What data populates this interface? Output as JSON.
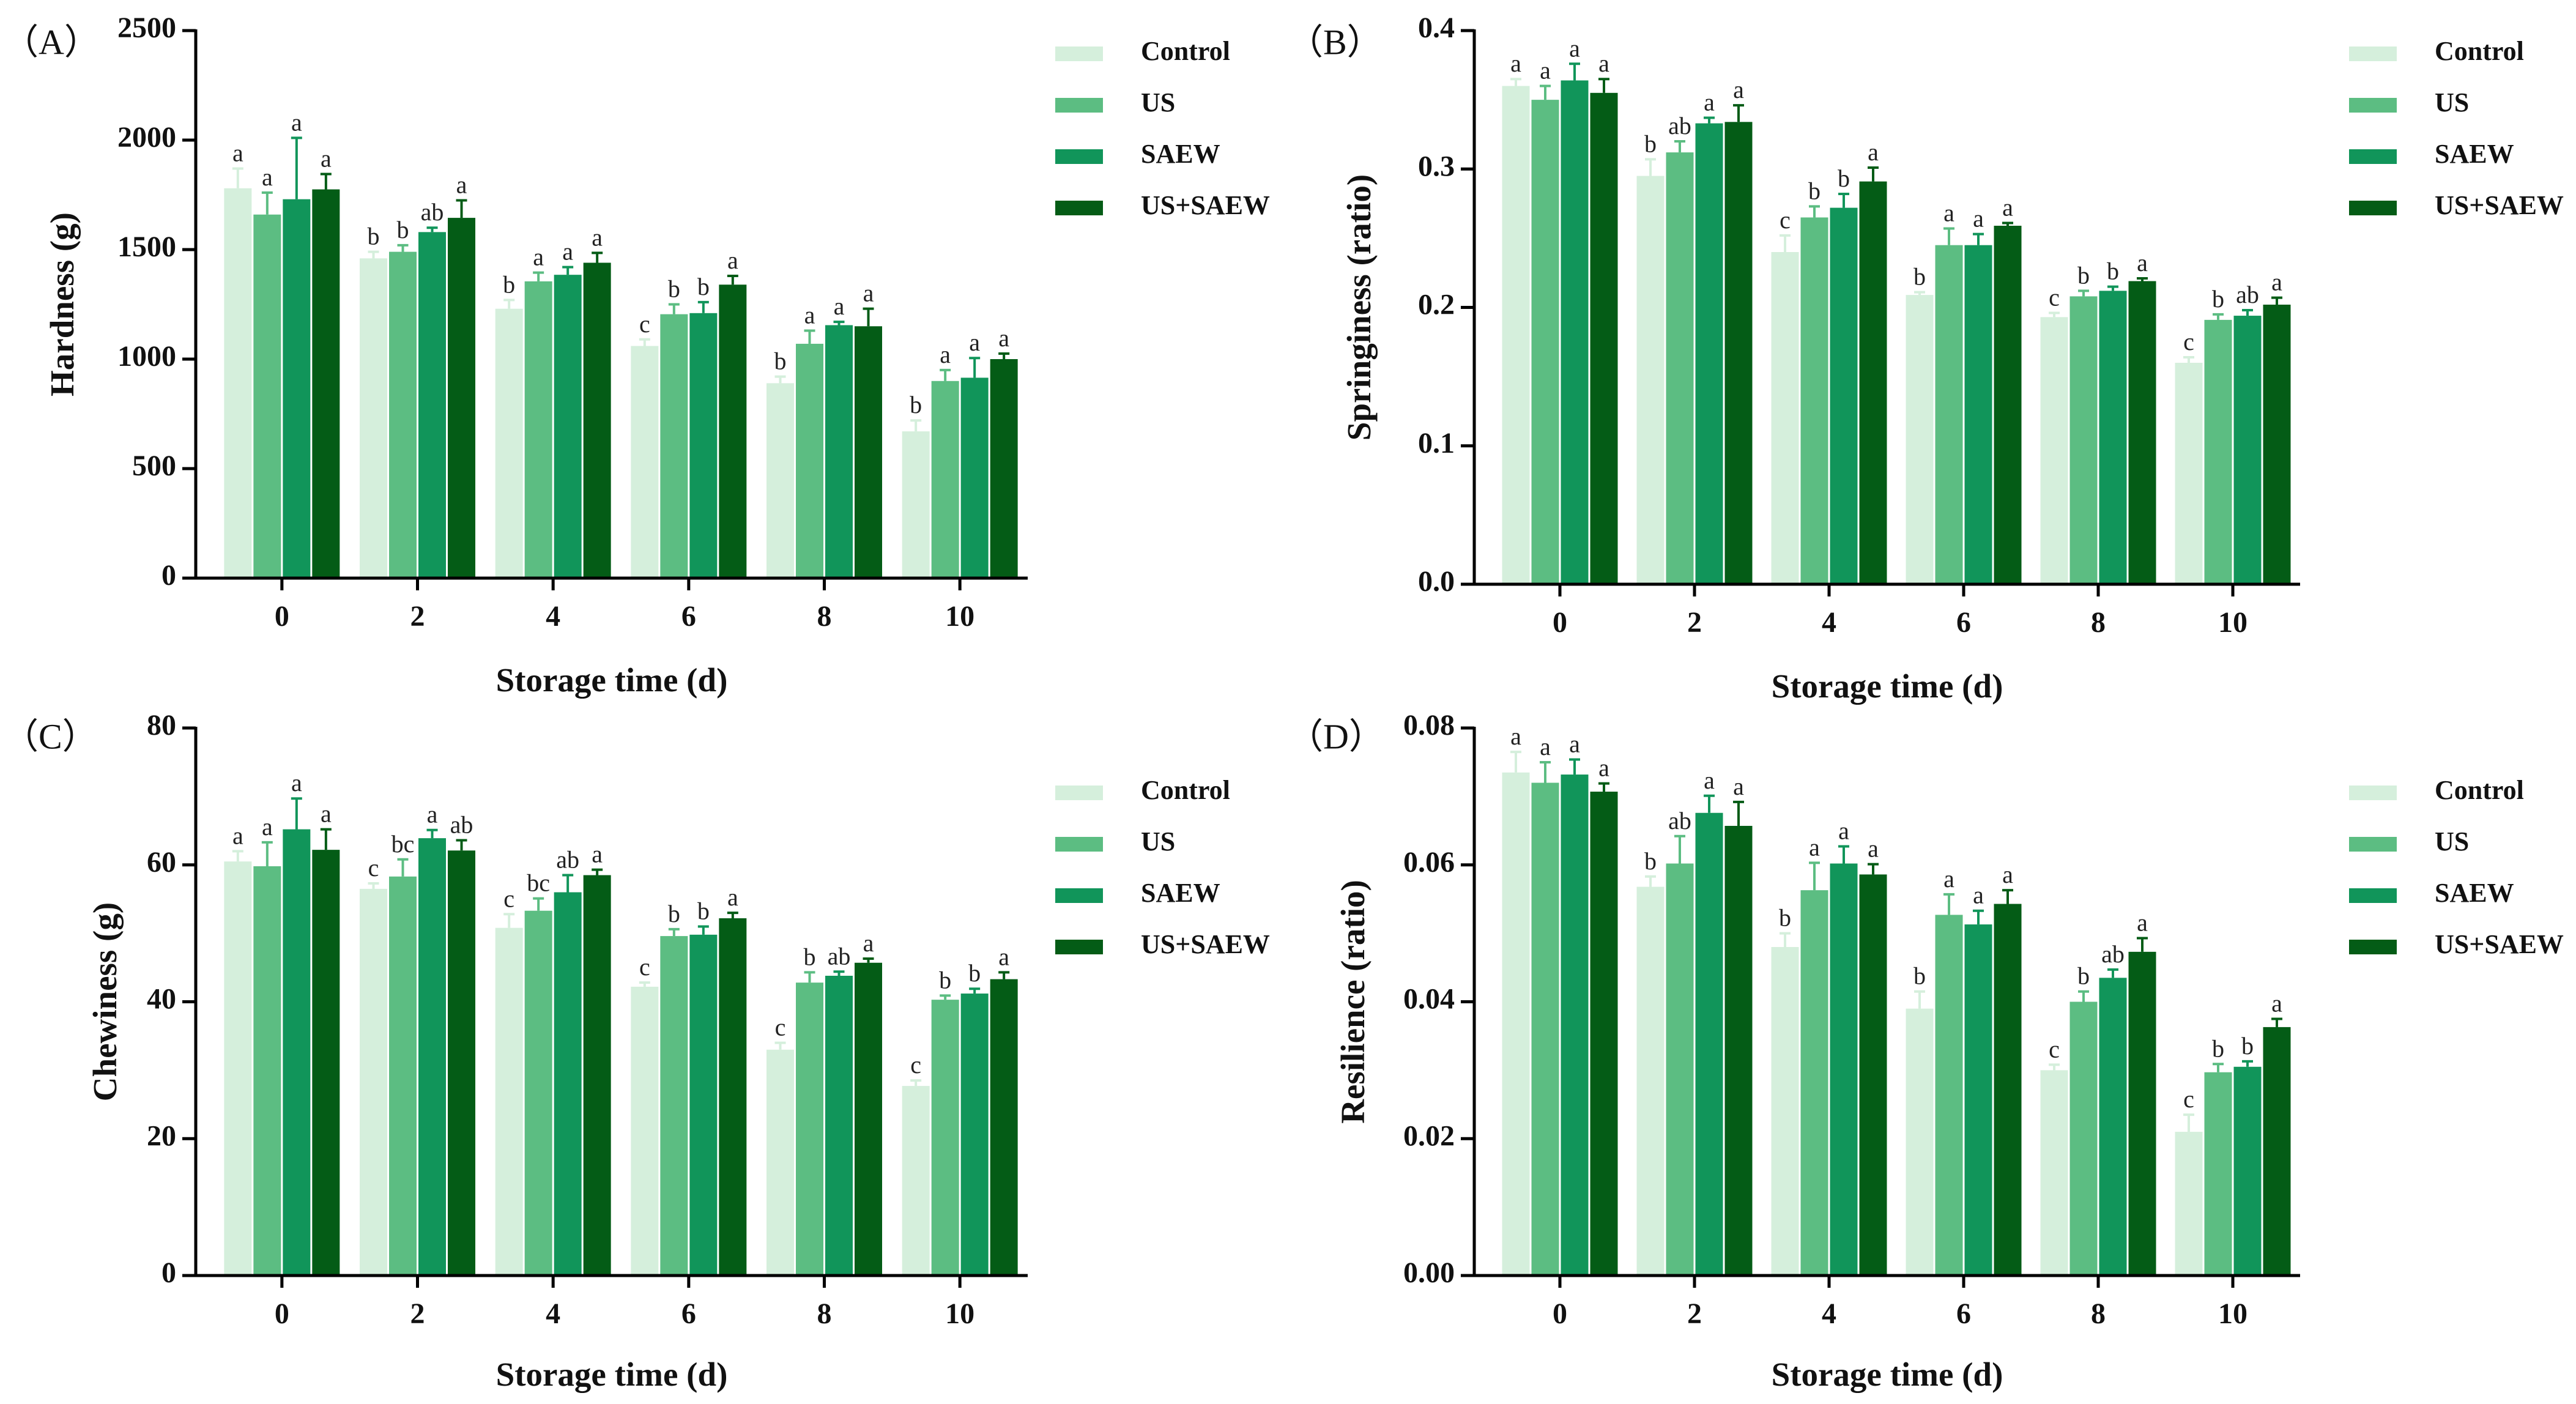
{
  "legend": [
    {
      "name": "Control",
      "color": "#d5efdc"
    },
    {
      "name": "US",
      "color": "#5cbd82"
    },
    {
      "name": "SAEW",
      "color": "#11955a"
    },
    {
      "name": "US+SAEW",
      "color": "#045c16"
    }
  ],
  "chart_data": [
    {
      "type": "bar",
      "panel": "（A）",
      "xlabel": "Storage time (d)",
      "ylabel": "Hardness (g)",
      "categories": [
        "0",
        "2",
        "4",
        "6",
        "8",
        "10"
      ],
      "ylim": [
        0,
        2500
      ],
      "yticks": [
        0,
        500,
        1000,
        1500,
        2000,
        2500
      ],
      "ytick_labels": [
        "0",
        "500",
        "1000",
        "1500",
        "2000",
        "2500"
      ],
      "series": [
        {
          "name": "Control",
          "values": [
            1780,
            1460,
            1230,
            1060,
            890,
            670
          ],
          "errors": [
            90,
            30,
            40,
            30,
            30,
            50
          ],
          "letters": [
            "a",
            "b",
            "b",
            "c",
            "b",
            "b"
          ]
        },
        {
          "name": "US",
          "values": [
            1660,
            1490,
            1355,
            1205,
            1070,
            900
          ],
          "errors": [
            100,
            30,
            40,
            45,
            60,
            50
          ],
          "letters": [
            "a",
            "b",
            "a",
            "b",
            "a",
            "a"
          ]
        },
        {
          "name": "SAEW",
          "values": [
            1730,
            1580,
            1385,
            1210,
            1155,
            915
          ],
          "errors": [
            280,
            20,
            35,
            50,
            15,
            90
          ],
          "letters": [
            "a",
            "ab",
            "a",
            "b",
            "a",
            "a"
          ]
        },
        {
          "name": "US+SAEW",
          "values": [
            1775,
            1645,
            1440,
            1340,
            1150,
            1000
          ],
          "errors": [
            70,
            80,
            45,
            40,
            80,
            25
          ],
          "letters": [
            "a",
            "a",
            "a",
            "a",
            "a",
            "a"
          ]
        }
      ]
    },
    {
      "type": "bar",
      "panel": "（B）",
      "xlabel": "Storage time (d)",
      "ylabel": "Springiness (ratio)",
      "categories": [
        "0",
        "2",
        "4",
        "6",
        "8",
        "10"
      ],
      "ylim": [
        0,
        0.4
      ],
      "yticks": [
        0,
        0.1,
        0.2,
        0.3,
        0.4
      ],
      "ytick_labels": [
        "0.0",
        "0.1",
        "0.2",
        "0.3",
        "0.4"
      ],
      "series": [
        {
          "name": "Control",
          "values": [
            0.36,
            0.295,
            0.24,
            0.209,
            0.193,
            0.16
          ],
          "errors": [
            0.005,
            0.012,
            0.012,
            0.002,
            0.003,
            0.004
          ],
          "letters": [
            "a",
            "b",
            "c",
            "b",
            "c",
            "c"
          ]
        },
        {
          "name": "US",
          "values": [
            0.35,
            0.312,
            0.265,
            0.245,
            0.208,
            0.191
          ],
          "errors": [
            0.01,
            0.008,
            0.008,
            0.012,
            0.004,
            0.004
          ],
          "letters": [
            "a",
            "ab",
            "b",
            "a",
            "b",
            "b"
          ]
        },
        {
          "name": "SAEW",
          "values": [
            0.364,
            0.333,
            0.272,
            0.245,
            0.212,
            0.194
          ],
          "errors": [
            0.012,
            0.004,
            0.01,
            0.008,
            0.003,
            0.004
          ],
          "letters": [
            "a",
            "a",
            "b",
            "a",
            "b",
            "ab"
          ]
        },
        {
          "name": "US+SAEW",
          "values": [
            0.355,
            0.334,
            0.291,
            0.259,
            0.219,
            0.202
          ],
          "errors": [
            0.01,
            0.012,
            0.01,
            0.002,
            0.002,
            0.005
          ],
          "letters": [
            "a",
            "a",
            "a",
            "a",
            "a",
            "a"
          ]
        }
      ]
    },
    {
      "type": "bar",
      "panel": "（C）",
      "xlabel": "Storage time (d)",
      "ylabel": "Chewiness (g)",
      "categories": [
        "0",
        "2",
        "4",
        "6",
        "8",
        "10"
      ],
      "ylim": [
        0,
        80
      ],
      "yticks": [
        0,
        20,
        40,
        60,
        80
      ],
      "ytick_labels": [
        "0",
        "20",
        "40",
        "60",
        "80"
      ],
      "series": [
        {
          "name": "Control",
          "values": [
            60.5,
            56.5,
            50.8,
            42.2,
            33.0,
            27.7
          ],
          "errors": [
            1.5,
            0.8,
            2.0,
            0.6,
            1.0,
            0.8
          ],
          "letters": [
            "a",
            "c",
            "c",
            "c",
            "c",
            "c"
          ]
        },
        {
          "name": "US",
          "values": [
            59.8,
            58.3,
            53.3,
            49.6,
            42.8,
            40.3
          ],
          "errors": [
            3.5,
            2.5,
            1.8,
            1.0,
            1.5,
            0.6
          ],
          "letters": [
            "a",
            "bc",
            "bc",
            "b",
            "b",
            "b"
          ]
        },
        {
          "name": "SAEW",
          "values": [
            65.2,
            63.9,
            56.0,
            49.8,
            43.8,
            41.2
          ],
          "errors": [
            4.5,
            1.2,
            2.5,
            1.2,
            0.6,
            0.7
          ],
          "letters": [
            "a",
            "a",
            "ab",
            "b",
            "ab",
            "b"
          ]
        },
        {
          "name": "US+SAEW",
          "values": [
            62.2,
            62.1,
            58.5,
            52.2,
            45.7,
            43.3
          ],
          "errors": [
            3.0,
            1.5,
            0.8,
            0.8,
            0.6,
            1.0
          ],
          "letters": [
            "a",
            "ab",
            "a",
            "a",
            "a",
            "a"
          ]
        }
      ]
    },
    {
      "type": "bar",
      "panel": "（D）",
      "xlabel": "Storage time (d)",
      "ylabel": "Resilience (ratio)",
      "categories": [
        "0",
        "2",
        "4",
        "6",
        "8",
        "10"
      ],
      "ylim": [
        0,
        0.08
      ],
      "yticks": [
        0,
        0.02,
        0.04,
        0.06,
        0.08
      ],
      "ytick_labels": [
        "0.00",
        "0.02",
        "0.04",
        "0.06",
        "0.08"
      ],
      "series": [
        {
          "name": "Control",
          "values": [
            0.0735,
            0.0568,
            0.048,
            0.039,
            0.03,
            0.021
          ],
          "errors": [
            0.003,
            0.0015,
            0.002,
            0.0025,
            0.0008,
            0.0025
          ],
          "letters": [
            "a",
            "b",
            "b",
            "b",
            "c",
            "c"
          ]
        },
        {
          "name": "US",
          "values": [
            0.072,
            0.0602,
            0.0563,
            0.0527,
            0.04,
            0.0297
          ],
          "errors": [
            0.003,
            0.004,
            0.004,
            0.003,
            0.0015,
            0.0012
          ],
          "letters": [
            "a",
            "ab",
            "a",
            "a",
            "b",
            "b"
          ]
        },
        {
          "name": "SAEW",
          "values": [
            0.0732,
            0.0676,
            0.0602,
            0.0513,
            0.0435,
            0.0305
          ],
          "errors": [
            0.0022,
            0.0025,
            0.0025,
            0.002,
            0.0012,
            0.0008
          ],
          "letters": [
            "a",
            "a",
            "a",
            "a",
            "ab",
            "b"
          ]
        },
        {
          "name": "US+SAEW",
          "values": [
            0.0707,
            0.0657,
            0.0586,
            0.0543,
            0.0473,
            0.0363
          ],
          "errors": [
            0.0012,
            0.0035,
            0.0015,
            0.002,
            0.002,
            0.0012
          ],
          "letters": [
            "a",
            "a",
            "a",
            "a",
            "a",
            "a"
          ]
        }
      ]
    }
  ]
}
